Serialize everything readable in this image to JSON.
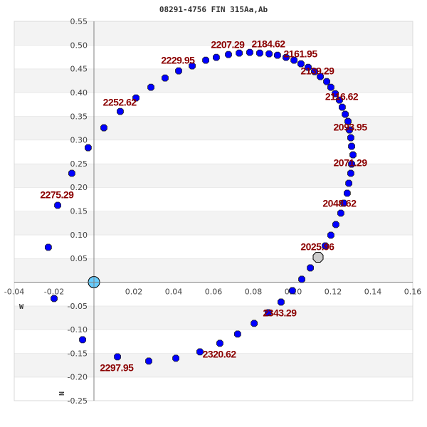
{
  "chart_data": {
    "type": "scatter",
    "title": "08291-4756 FIN 315Aa,Ab",
    "xlim": [
      -0.04,
      0.16
    ],
    "ylim": [
      -0.25,
      0.55
    ],
    "x_ticks": [
      -0.04,
      -0.02,
      0.02,
      0.04,
      0.06,
      0.08,
      0.1,
      0.12,
      0.14,
      0.16
    ],
    "x_tick_labels": [
      "-0.04",
      "-0.02",
      "0.02",
      "0.04",
      "0.06",
      "0.08",
      "0.10",
      "0.12",
      "0.14",
      "0.16"
    ],
    "y_ticks": [
      0.55,
      0.5,
      0.45,
      0.4,
      0.35,
      0.3,
      0.25,
      0.2,
      0.15,
      0.1,
      0.05,
      -0.05,
      -0.1,
      -0.15,
      -0.2,
      -0.25
    ],
    "y_tick_labels": [
      "0.55",
      "0.50",
      "0.45",
      "0.40",
      "0.35",
      "0.30",
      "0.25",
      "0.20",
      "0.15",
      "0.10",
      "0.05",
      "-0.05",
      "-0.10",
      "-0.15",
      "-0.20",
      "-0.25"
    ],
    "direction_labels": {
      "east_west": "W",
      "north": "N"
    },
    "grid": true,
    "colors": {
      "points": "#0000ff",
      "labels": "#8b0000",
      "primary": "#66ccff",
      "current": "#cccccc",
      "band": "#f3f3f3"
    },
    "primary": [
      0,
      0
    ],
    "current_position": [
      0.1125,
      0.0525
    ],
    "points": [
      [
        0.1161,
        0.0765
      ],
      [
        0.1189,
        0.099
      ],
      [
        0.1214,
        0.1215
      ],
      [
        0.1239,
        0.1455
      ],
      [
        0.1254,
        0.1665
      ],
      [
        0.1271,
        0.1875
      ],
      [
        0.1279,
        0.2085
      ],
      [
        0.1289,
        0.2295
      ],
      [
        0.1293,
        0.249
      ],
      [
        0.13,
        0.2685
      ],
      [
        0.1293,
        0.2865
      ],
      [
        0.1289,
        0.3045
      ],
      [
        0.1282,
        0.321
      ],
      [
        0.1275,
        0.339
      ],
      [
        0.1261,
        0.354
      ],
      [
        0.1246,
        0.369
      ],
      [
        0.1232,
        0.384
      ],
      [
        0.1211,
        0.3975
      ],
      [
        0.1189,
        0.411
      ],
      [
        0.1168,
        0.423
      ],
      [
        0.1136,
        0.4335
      ],
      [
        0.1107,
        0.444
      ],
      [
        0.1075,
        0.453
      ],
      [
        0.1039,
        0.4605
      ],
      [
        0.1004,
        0.468
      ],
      [
        0.0964,
        0.474
      ],
      [
        0.0921,
        0.4785
      ],
      [
        0.0879,
        0.4815
      ],
      [
        0.0832,
        0.483
      ],
      [
        0.0782,
        0.4845
      ],
      [
        0.0729,
        0.483
      ],
      [
        0.0675,
        0.48
      ],
      [
        0.0614,
        0.474
      ],
      [
        0.0561,
        0.468
      ],
      [
        0.0493,
        0.456
      ],
      [
        0.0425,
        0.4455
      ],
      [
        0.0357,
        0.4305
      ],
      [
        0.0286,
        0.411
      ],
      [
        0.0211,
        0.3885
      ],
      [
        0.0132,
        0.36
      ],
      [
        0.005,
        0.3255
      ],
      [
        -0.0029,
        0.2835
      ],
      [
        -0.0111,
        0.2295
      ],
      [
        -0.0182,
        0.162
      ],
      [
        -0.0229,
        0.0735
      ],
      [
        -0.02,
        -0.0345
      ],
      [
        -0.0057,
        -0.1215
      ],
      [
        0.0118,
        -0.1575
      ],
      [
        0.0275,
        -0.1665
      ],
      [
        0.0411,
        -0.1605
      ],
      [
        0.0532,
        -0.147
      ],
      [
        0.0632,
        -0.129
      ],
      [
        0.0721,
        -0.1095
      ],
      [
        0.0804,
        -0.087
      ],
      [
        0.0875,
        -0.0645
      ],
      [
        0.0939,
        -0.042
      ],
      [
        0.0996,
        -0.018
      ],
      [
        0.1043,
        0.006
      ],
      [
        0.1086,
        0.03
      ]
    ],
    "annotations": [
      {
        "text": "2207.29",
        "x": 0.0671,
        "y": 0.5011
      },
      {
        "text": "2184.62",
        "x": 0.0875,
        "y": 0.5026
      },
      {
        "text": "2161.95",
        "x": 0.1036,
        "y": 0.4816
      },
      {
        "text": "2139.29",
        "x": 0.1121,
        "y": 0.4456
      },
      {
        "text": "2116.62",
        "x": 0.1243,
        "y": 0.3916
      },
      {
        "text": "2093.95",
        "x": 0.1286,
        "y": 0.327
      },
      {
        "text": "2071.29",
        "x": 0.1286,
        "y": 0.252
      },
      {
        "text": "2048.62",
        "x": 0.1232,
        "y": 0.1665
      },
      {
        "text": "2025.96",
        "x": 0.1121,
        "y": 0.075
      },
      {
        "text": "2343.29",
        "x": 0.0932,
        "y": -0.0645
      },
      {
        "text": "2320.62",
        "x": 0.0629,
        "y": -0.1515
      },
      {
        "text": "2297.95",
        "x": 0.0114,
        "y": -0.18
      },
      {
        "text": "2275.29",
        "x": -0.0186,
        "y": 0.1845
      },
      {
        "text": "2252.62",
        "x": 0.0129,
        "y": 0.3795
      },
      {
        "text": "2229.95",
        "x": 0.0421,
        "y": 0.468
      }
    ]
  }
}
